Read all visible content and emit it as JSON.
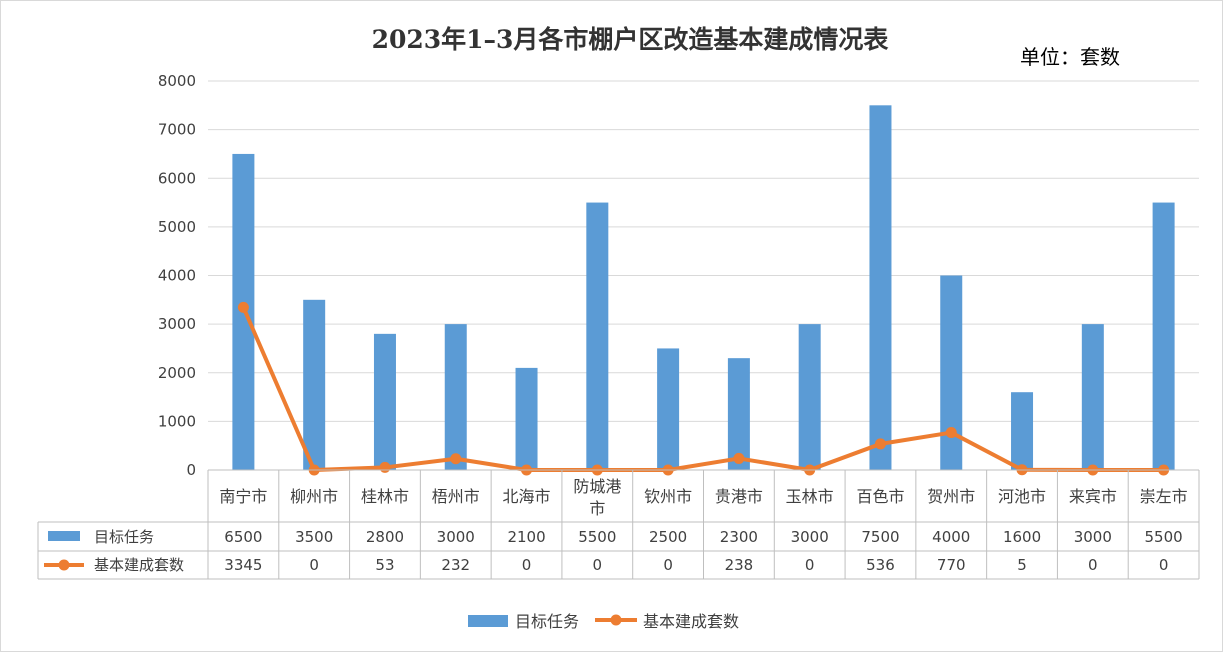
{
  "chart_data": {
    "type": "bar",
    "title": "2023年1–3月各市棚户区改造基本建成情况表",
    "unit_label": "单位：套数",
    "categories": [
      "南宁市",
      "柳州市",
      "桂林市",
      "梧州市",
      "北海市",
      "防城港市",
      "钦州市",
      "贵港市",
      "玉林市",
      "百色市",
      "贺州市",
      "河池市",
      "来宾市",
      "崇左市"
    ],
    "series": [
      {
        "name": "目标任务",
        "kind": "bar",
        "color": "#5B9BD5",
        "values": [
          6500,
          3500,
          2800,
          3000,
          2100,
          5500,
          2500,
          2300,
          3000,
          7500,
          4000,
          1600,
          3000,
          5500
        ]
      },
      {
        "name": "基本建成套数",
        "kind": "line",
        "color": "#ED7D31",
        "values": [
          3345,
          0,
          53,
          232,
          0,
          0,
          0,
          238,
          0,
          536,
          770,
          5,
          0,
          0
        ]
      }
    ],
    "ylim": [
      0,
      8000
    ],
    "yticks": [
      0,
      1000,
      2000,
      3000,
      4000,
      5000,
      6000,
      7000,
      8000
    ],
    "grid": true,
    "data_table": true,
    "legend": "bottom"
  }
}
